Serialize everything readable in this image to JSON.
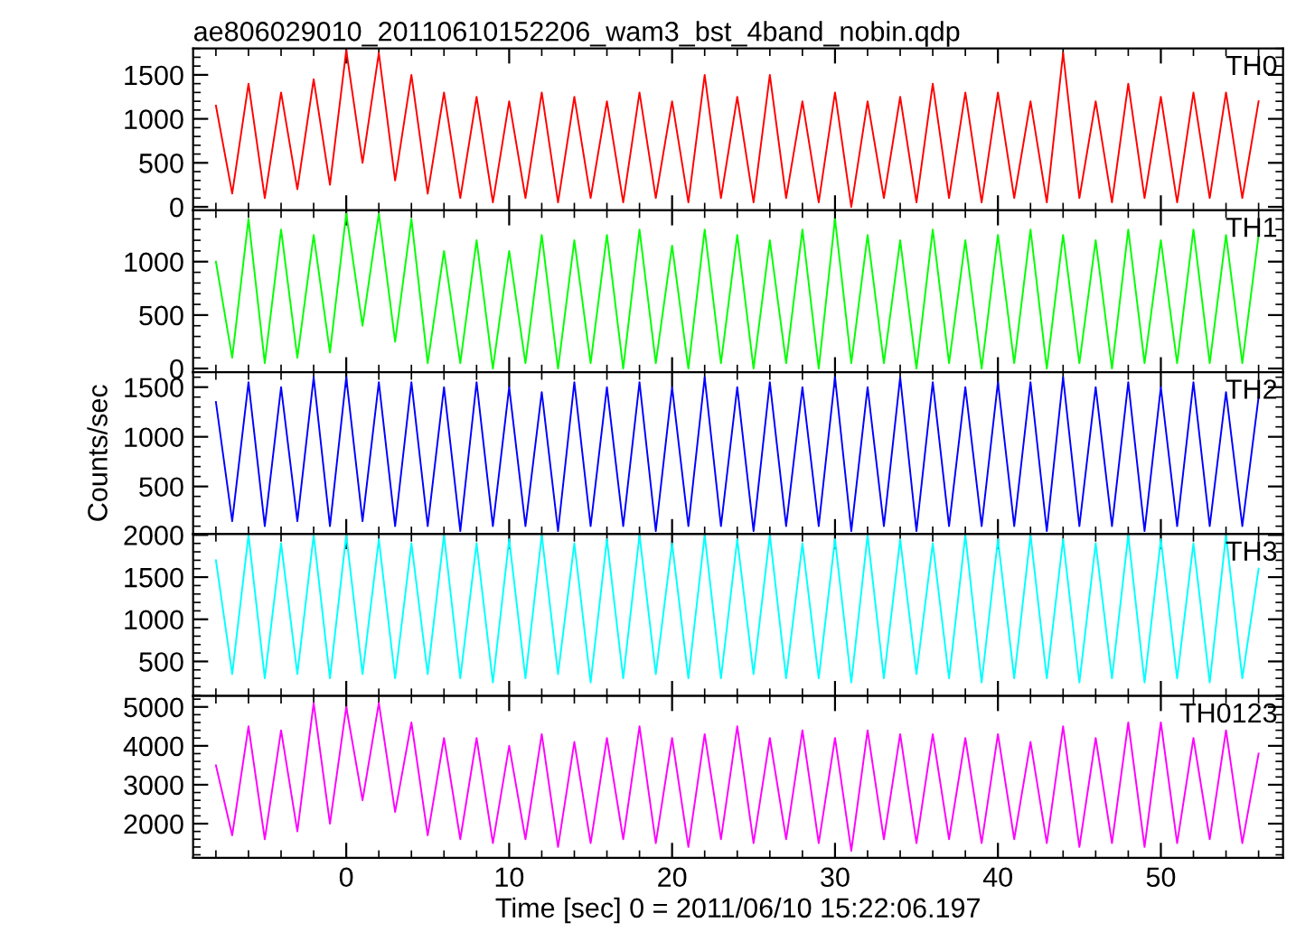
{
  "chart_data": [
    {
      "type": "line",
      "title": "ae806029010_20110610152206_wam3_bst_4band_nobin.qdp",
      "tick_labels": "y",
      "xlim": [
        -9.4,
        57.5
      ],
      "xticks": [
        0,
        10,
        20,
        30,
        40,
        50
      ],
      "ylim": [
        -40,
        1800
      ],
      "yticks": [
        0,
        500,
        1000,
        1500
      ],
      "x": [
        -8,
        -7,
        -6,
        -5,
        -4,
        -3,
        -2,
        -1,
        0,
        1,
        2,
        3,
        4,
        5,
        6,
        7,
        8,
        9,
        10,
        11,
        12,
        13,
        14,
        15,
        16,
        17,
        18,
        19,
        20,
        21,
        22,
        23,
        24,
        25,
        26,
        27,
        28,
        29,
        30,
        31,
        32,
        33,
        34,
        35,
        36,
        37,
        38,
        39,
        40,
        41,
        42,
        43,
        44,
        45,
        46,
        47,
        48,
        49,
        50,
        51,
        52,
        53,
        54,
        55,
        56
      ],
      "series": [
        {
          "name": "TH0",
          "color": "#ff0000",
          "values": [
            1150,
            150,
            1400,
            100,
            1300,
            200,
            1450,
            250,
            1780,
            500,
            1750,
            300,
            1500,
            150,
            1300,
            100,
            1250,
            50,
            1200,
            100,
            1300,
            50,
            1250,
            100,
            1200,
            50,
            1300,
            100,
            1200,
            50,
            1500,
            100,
            1250,
            50,
            1500,
            100,
            1200,
            50,
            1300,
            0,
            1200,
            100,
            1250,
            50,
            1400,
            100,
            1300,
            50,
            1300,
            100,
            1200,
            50,
            1750,
            100,
            1200,
            50,
            1400,
            100,
            1250,
            50,
            1300,
            100,
            1300,
            100,
            1200
          ]
        }
      ]
    },
    {
      "type": "line",
      "tick_labels": "y",
      "xlim": [
        -9.4,
        57.5
      ],
      "xticks": [
        0,
        10,
        20,
        30,
        40,
        50
      ],
      "ylim": [
        -35,
        1480
      ],
      "yticks": [
        0,
        500,
        1000
      ],
      "x": [
        -8,
        -7,
        -6,
        -5,
        -4,
        -3,
        -2,
        -1,
        0,
        1,
        2,
        3,
        4,
        5,
        6,
        7,
        8,
        9,
        10,
        11,
        12,
        13,
        14,
        15,
        16,
        17,
        18,
        19,
        20,
        21,
        22,
        23,
        24,
        25,
        26,
        27,
        28,
        29,
        30,
        31,
        32,
        33,
        34,
        35,
        36,
        37,
        38,
        39,
        40,
        41,
        42,
        43,
        44,
        45,
        46,
        47,
        48,
        49,
        50,
        51,
        52,
        53,
        54,
        55,
        56
      ],
      "series": [
        {
          "name": "TH1",
          "color": "#00ff00",
          "values": [
            1000,
            100,
            1400,
            50,
            1300,
            100,
            1250,
            150,
            1450,
            400,
            1450,
            250,
            1400,
            50,
            1100,
            50,
            1200,
            0,
            1100,
            50,
            1250,
            0,
            1200,
            50,
            1250,
            0,
            1300,
            50,
            1150,
            0,
            1300,
            50,
            1250,
            0,
            1200,
            50,
            1300,
            0,
            1400,
            50,
            1250,
            50,
            1200,
            0,
            1300,
            50,
            1200,
            0,
            1250,
            50,
            1300,
            0,
            1250,
            50,
            1200,
            0,
            1300,
            50,
            1200,
            50,
            1300,
            50,
            1250,
            50,
            1250
          ]
        }
      ]
    },
    {
      "type": "line",
      "tick_labels": "y",
      "ylabel": "Counts/sec",
      "xlim": [
        -9.4,
        57.5
      ],
      "xticks": [
        0,
        10,
        20,
        30,
        40,
        50
      ],
      "ylim": [
        20,
        1650
      ],
      "yticks": [
        500,
        1000,
        1500
      ],
      "x": [
        -8,
        -7,
        -6,
        -5,
        -4,
        -3,
        -2,
        -1,
        0,
        1,
        2,
        3,
        4,
        5,
        6,
        7,
        8,
        9,
        10,
        11,
        12,
        13,
        14,
        15,
        16,
        17,
        18,
        19,
        20,
        21,
        22,
        23,
        24,
        25,
        26,
        27,
        28,
        29,
        30,
        31,
        32,
        33,
        34,
        35,
        36,
        37,
        38,
        39,
        40,
        41,
        42,
        43,
        44,
        45,
        46,
        47,
        48,
        49,
        50,
        51,
        52,
        53,
        54,
        55,
        56
      ],
      "series": [
        {
          "name": "TH2",
          "color": "#0000ff",
          "values": [
            1350,
            150,
            1550,
            100,
            1500,
            150,
            1600,
            100,
            1600,
            150,
            1550,
            100,
            1550,
            100,
            1500,
            50,
            1550,
            100,
            1500,
            100,
            1450,
            50,
            1550,
            100,
            1500,
            100,
            1550,
            50,
            1500,
            100,
            1600,
            100,
            1500,
            50,
            1550,
            100,
            1500,
            100,
            1600,
            50,
            1500,
            100,
            1600,
            50,
            1550,
            100,
            1500,
            100,
            1550,
            100,
            1550,
            50,
            1600,
            100,
            1500,
            100,
            1550,
            50,
            1500,
            100,
            1550,
            100,
            1450,
            100,
            1400
          ]
        }
      ]
    },
    {
      "type": "line",
      "tick_labels": "y",
      "xlim": [
        -9.4,
        57.5
      ],
      "xticks": [
        0,
        10,
        20,
        30,
        40,
        50
      ],
      "ylim": [
        90,
        2010
      ],
      "yticks": [
        500,
        1000,
        1500,
        2000
      ],
      "x": [
        -8,
        -7,
        -6,
        -5,
        -4,
        -3,
        -2,
        -1,
        0,
        1,
        2,
        3,
        4,
        5,
        6,
        7,
        8,
        9,
        10,
        11,
        12,
        13,
        14,
        15,
        16,
        17,
        18,
        19,
        20,
        21,
        22,
        23,
        24,
        25,
        26,
        27,
        28,
        29,
        30,
        31,
        32,
        33,
        34,
        35,
        36,
        37,
        38,
        39,
        40,
        41,
        42,
        43,
        44,
        45,
        46,
        47,
        48,
        49,
        50,
        51,
        52,
        53,
        54,
        55,
        56
      ],
      "series": [
        {
          "name": "TH3",
          "color": "#00ffff",
          "values": [
            1700,
            350,
            2000,
            300,
            1900,
            350,
            2000,
            300,
            2000,
            350,
            1950,
            300,
            1900,
            350,
            2000,
            300,
            1900,
            250,
            1950,
            300,
            2000,
            350,
            1900,
            250,
            1950,
            300,
            2000,
            350,
            1900,
            300,
            2000,
            300,
            1950,
            350,
            2000,
            300,
            1900,
            300,
            1950,
            250,
            2000,
            300,
            1950,
            350,
            1900,
            300,
            2000,
            250,
            1950,
            300,
            2000,
            300,
            1950,
            250,
            1900,
            300,
            2000,
            250,
            1950,
            300,
            1900,
            250,
            2000,
            300,
            1600
          ]
        }
      ]
    },
    {
      "type": "line",
      "tick_labels": true,
      "xlabel": "Time [sec] 0 = 2011/06/10 15:22:06.197",
      "xlim": [
        -9.4,
        57.5
      ],
      "xticks": [
        0,
        10,
        20,
        30,
        40,
        50
      ],
      "ylim": [
        1120,
        5280
      ],
      "yticks": [
        2000,
        3000,
        4000,
        5000
      ],
      "x": [
        -8,
        -7,
        -6,
        -5,
        -4,
        -3,
        -2,
        -1,
        0,
        1,
        2,
        3,
        4,
        5,
        6,
        7,
        8,
        9,
        10,
        11,
        12,
        13,
        14,
        15,
        16,
        17,
        18,
        19,
        20,
        21,
        22,
        23,
        24,
        25,
        26,
        27,
        28,
        29,
        30,
        31,
        32,
        33,
        34,
        35,
        36,
        37,
        38,
        39,
        40,
        41,
        42,
        43,
        44,
        45,
        46,
        47,
        48,
        49,
        50,
        51,
        52,
        53,
        54,
        55,
        56
      ],
      "series": [
        {
          "name": "TH0123",
          "color": "#ff00ff",
          "values": [
            3500,
            1700,
            4500,
            1600,
            4400,
            1800,
            5100,
            2000,
            5000,
            2600,
            5100,
            2300,
            4600,
            1700,
            4200,
            1600,
            4200,
            1500,
            4000,
            1600,
            4300,
            1400,
            4100,
            1500,
            4200,
            1600,
            4500,
            1500,
            4200,
            1400,
            4300,
            1600,
            4500,
            1500,
            4200,
            1600,
            4400,
            1500,
            4200,
            1300,
            4400,
            1600,
            4300,
            1500,
            4300,
            1600,
            4200,
            1500,
            4300,
            1600,
            4100,
            1500,
            4500,
            1400,
            4200,
            1500,
            4600,
            1400,
            4600,
            1500,
            4200,
            1600,
            4400,
            1500,
            3800
          ]
        }
      ]
    }
  ]
}
